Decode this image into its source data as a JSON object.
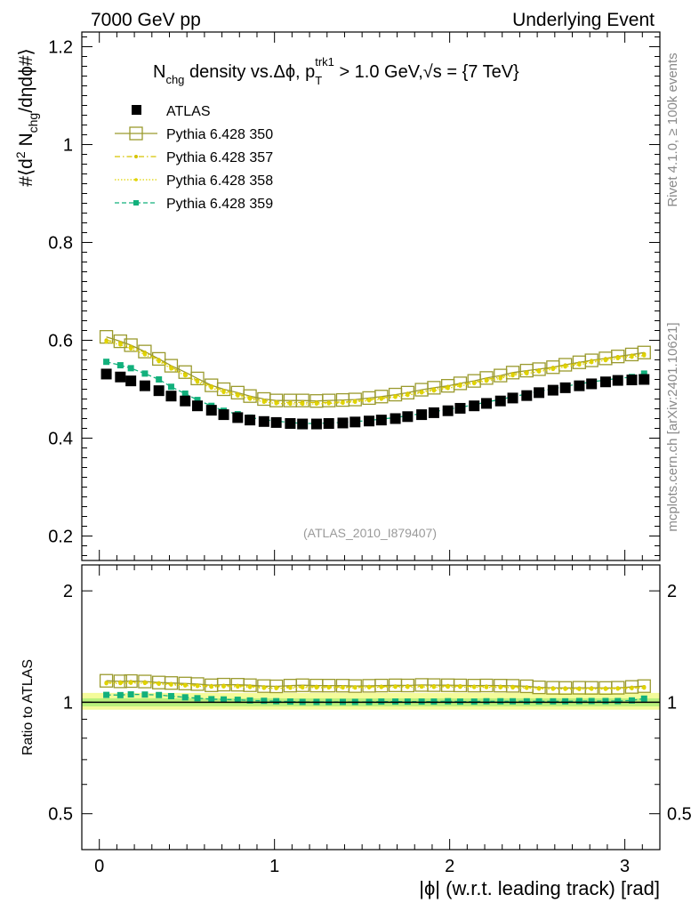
{
  "header": {
    "left": "7000 GeV pp",
    "right": "Underlying Event"
  },
  "side_labels": {
    "top": "Rivet 4.1.0, ≥ 100k events",
    "bottom": "mcplots.cern.ch [arXiv:2401.10621]"
  },
  "chart_data": {
    "type": "scatter",
    "title": "N_chg density vs.Δϕ, p_T^trk1 > 1.0 GeV, √s = {7 TeV}",
    "title_parts": {
      "n": "N",
      "n_sub": "chg",
      "mid": " density vs.Δϕ, p",
      "pt_sub": "T",
      "pt_sup": "trk1",
      "gt": " > 1.0 GeV,",
      "sqrt": "√",
      "s_rest": "s = {7 TeV}"
    },
    "ylabel_main": "#⟨d² N_chg/dηdϕ#⟩",
    "ylabel_parts": {
      "a": "#⟨d",
      "sup2": "2",
      "b": " N",
      "sub": "chg",
      "c": "/dηdϕ#⟩"
    },
    "ylabel_ratio": "Ratio to ATLAS",
    "xlabel": "|ϕ| (w.r.t. leading track) [rad]",
    "reference_tag": "(ATLAS_2010_I879407)",
    "xlim": [
      -0.1,
      3.2
    ],
    "ylim_main": [
      0.15,
      1.23
    ],
    "ylim_ratio": [
      0.4,
      2.35
    ],
    "x_ticks": [
      "0",
      "1",
      "2",
      "3"
    ],
    "y_ticks_main": [
      "0.2",
      "0.4",
      "0.6",
      "0.8",
      "1",
      "1.2"
    ],
    "y_ticks_ratio": [
      "0.5",
      "1",
      "2"
    ],
    "x": [
      0.04,
      0.12,
      0.18,
      0.26,
      0.34,
      0.41,
      0.49,
      0.56,
      0.64,
      0.71,
      0.79,
      0.86,
      0.94,
      1.01,
      1.09,
      1.16,
      1.24,
      1.31,
      1.39,
      1.46,
      1.54,
      1.61,
      1.69,
      1.76,
      1.84,
      1.91,
      1.99,
      2.06,
      2.14,
      2.21,
      2.29,
      2.36,
      2.44,
      2.51,
      2.59,
      2.66,
      2.74,
      2.81,
      2.89,
      2.96,
      3.04,
      3.11
    ],
    "series": [
      {
        "name": "ATLAS",
        "style": "black-square",
        "color": "#000000",
        "values": [
          0.531,
          0.525,
          0.517,
          0.507,
          0.497,
          0.486,
          0.476,
          0.466,
          0.457,
          0.448,
          0.442,
          0.437,
          0.434,
          0.432,
          0.43,
          0.429,
          0.429,
          0.43,
          0.431,
          0.433,
          0.435,
          0.437,
          0.44,
          0.444,
          0.448,
          0.452,
          0.456,
          0.461,
          0.466,
          0.471,
          0.476,
          0.482,
          0.487,
          0.493,
          0.498,
          0.503,
          0.507,
          0.511,
          0.515,
          0.518,
          0.519,
          0.52
        ]
      },
      {
        "name": "Pythia 6.428 350",
        "style": "open-square-solid",
        "color": "#9a9a2e",
        "values": [
          0.607,
          0.598,
          0.59,
          0.577,
          0.562,
          0.548,
          0.535,
          0.522,
          0.508,
          0.5,
          0.493,
          0.486,
          0.48,
          0.477,
          0.477,
          0.477,
          0.476,
          0.477,
          0.478,
          0.479,
          0.482,
          0.485,
          0.489,
          0.493,
          0.499,
          0.503,
          0.507,
          0.512,
          0.517,
          0.523,
          0.528,
          0.534,
          0.538,
          0.541,
          0.545,
          0.55,
          0.555,
          0.559,
          0.563,
          0.567,
          0.571,
          0.575
        ]
      },
      {
        "name": "Pythia 6.428 357",
        "style": "dashdot-small",
        "color": "#d6c400",
        "values": [
          0.6,
          0.595,
          0.587,
          0.575,
          0.56,
          0.545,
          0.531,
          0.518,
          0.506,
          0.497,
          0.49,
          0.483,
          0.477,
          0.474,
          0.473,
          0.473,
          0.473,
          0.473,
          0.474,
          0.476,
          0.479,
          0.482,
          0.486,
          0.491,
          0.495,
          0.5,
          0.505,
          0.51,
          0.514,
          0.52,
          0.525,
          0.531,
          0.535,
          0.539,
          0.544,
          0.549,
          0.553,
          0.558,
          0.562,
          0.566,
          0.569,
          0.572
        ]
      },
      {
        "name": "Pythia 6.428 358",
        "style": "dotted-small",
        "color": "#e0d400",
        "values": [
          0.597,
          0.591,
          0.583,
          0.571,
          0.557,
          0.542,
          0.528,
          0.515,
          0.503,
          0.494,
          0.487,
          0.48,
          0.474,
          0.471,
          0.47,
          0.47,
          0.47,
          0.471,
          0.472,
          0.474,
          0.477,
          0.48,
          0.484,
          0.488,
          0.493,
          0.497,
          0.502,
          0.507,
          0.512,
          0.517,
          0.522,
          0.528,
          0.532,
          0.536,
          0.541,
          0.546,
          0.55,
          0.555,
          0.559,
          0.563,
          0.566,
          0.569
        ]
      },
      {
        "name": "Pythia 6.428 359",
        "style": "dashed-green-square",
        "color": "#12b07c",
        "values": [
          0.556,
          0.549,
          0.543,
          0.532,
          0.52,
          0.505,
          0.491,
          0.478,
          0.466,
          0.456,
          0.449,
          0.442,
          0.438,
          0.435,
          0.432,
          0.43,
          0.43,
          0.431,
          0.432,
          0.434,
          0.436,
          0.439,
          0.442,
          0.446,
          0.45,
          0.454,
          0.459,
          0.463,
          0.468,
          0.474,
          0.479,
          0.485,
          0.49,
          0.496,
          0.501,
          0.506,
          0.511,
          0.515,
          0.519,
          0.522,
          0.525,
          0.532
        ]
      }
    ],
    "ratio_band": {
      "inner": [
        0.975,
        1.025
      ],
      "outer": [
        0.955,
        1.06
      ]
    }
  }
}
